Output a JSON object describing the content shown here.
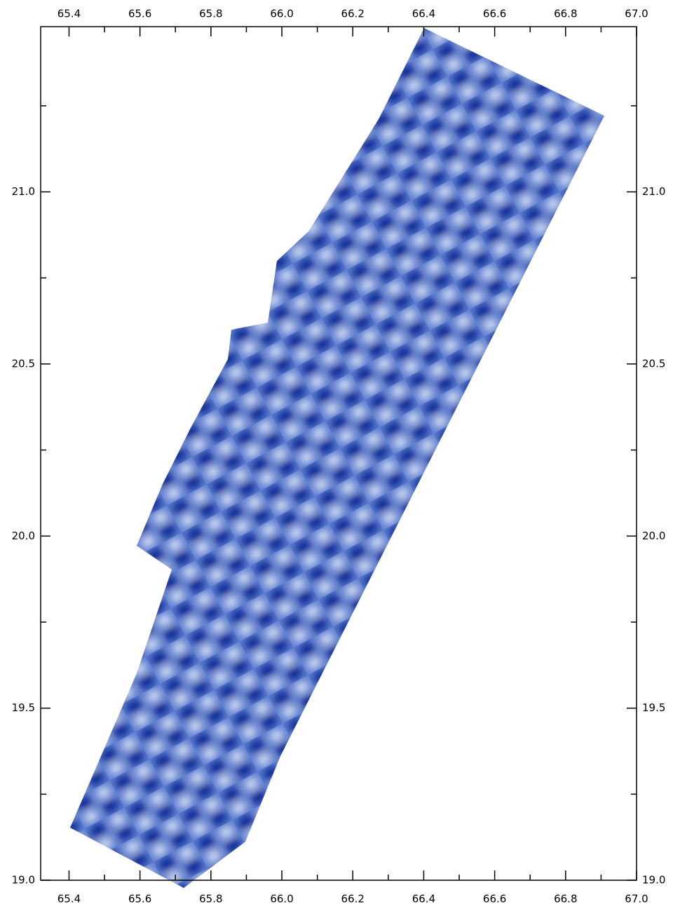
{
  "chart_data": {
    "type": "map",
    "xlim": [
      65.32,
      67.0
    ],
    "ylim": [
      19.0,
      21.48
    ],
    "xticks": [
      65.4,
      65.6,
      65.8,
      {
        "value": 66,
        "label": "66.0"
      },
      66.2,
      66.4,
      66.6,
      66.8,
      {
        "value": 67,
        "label": "67.0"
      }
    ],
    "yticks": [
      {
        "value": 19,
        "label": "19.0"
      },
      19.5,
      {
        "value": 20,
        "label": "20.0"
      },
      20.5,
      {
        "value": 21,
        "label": "21.0"
      }
    ],
    "xminorticks": [
      65.5,
      65.7,
      65.9,
      66.1,
      66.3,
      66.5,
      66.7,
      66.9
    ],
    "yminorticks": [
      19.25,
      19.75,
      20.25,
      20.75,
      21.25
    ]
  }
}
